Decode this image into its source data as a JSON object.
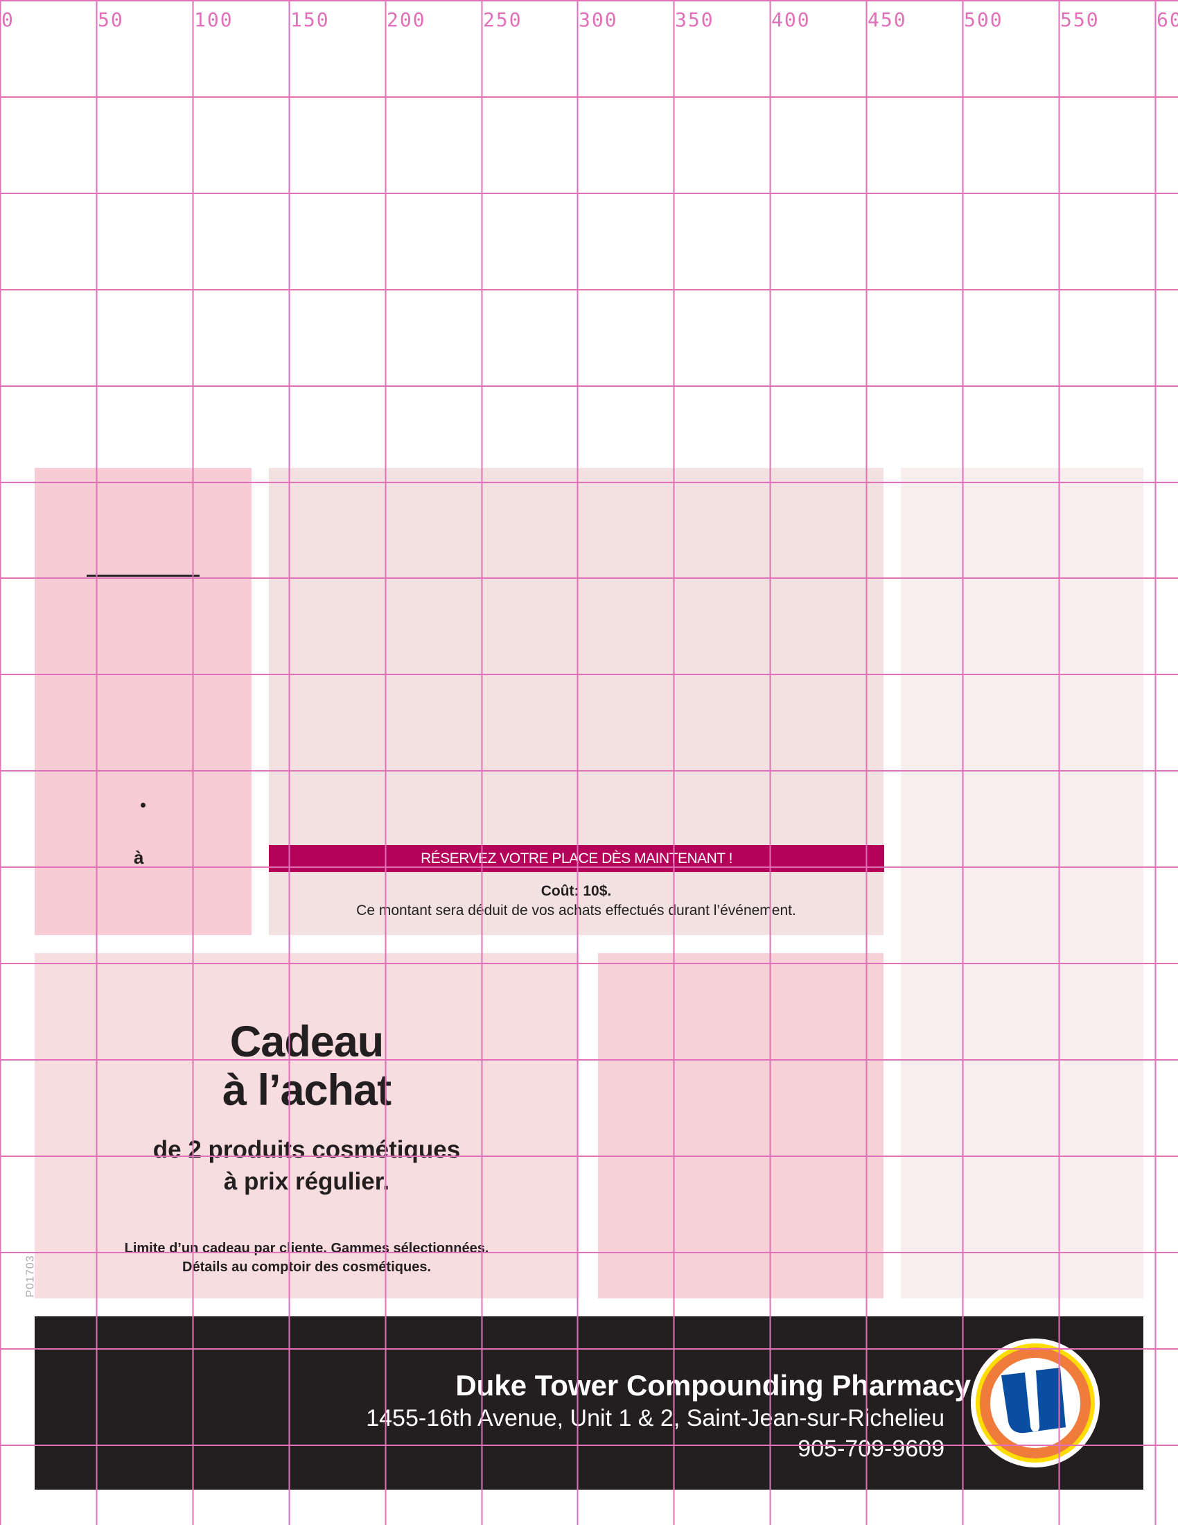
{
  "ruler": {
    "labels": [
      "0",
      "50",
      "100",
      "150",
      "200",
      "250",
      "300",
      "350",
      "400",
      "450",
      "500",
      "550",
      "60"
    ]
  },
  "left_panel": {
    "bullet": "•",
    "connector": "à"
  },
  "event": {
    "banner": "RÉSERVEZ VOTRE PLACE DÈS MAINTENANT !",
    "cost": "Coût: 10$.",
    "cost_note": "Ce montant sera déduit de vos achats effectués durant l’événement."
  },
  "promo": {
    "title_line1": "Cadeau",
    "title_line2": "à l’achat",
    "sub_line1": "de 2 produits cosmétiques",
    "sub_line2": "à prix régulier.",
    "fine_line1": "Limite d’un cadeau par cliente. Gammes sélectionnées.",
    "fine_line2": "Détails au comptoir des cosmétiques.",
    "code": "P01703"
  },
  "footer": {
    "store_name": "Duke Tower Compounding Pharmacy",
    "address": "1455-16th Avenue, Unit 1 & 2, Saint-Jean-sur-Richelieu",
    "phone": "905-709-9609",
    "logo_letter": "U"
  },
  "colors": {
    "banner": "#b5005a",
    "footer": "#231f20",
    "grid": "#e070b8",
    "logo_blue": "#0a4ea2",
    "logo_orange": "#f07c3c",
    "logo_yellow": "#ffdd00"
  }
}
